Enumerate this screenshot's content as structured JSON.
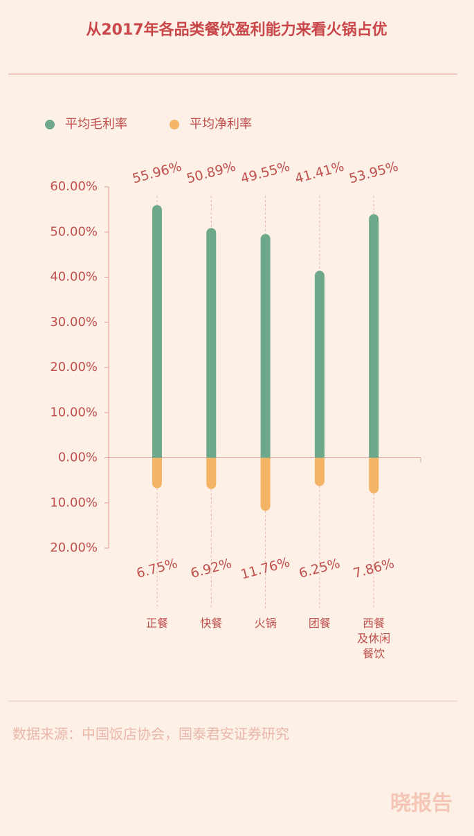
{
  "chart_data": {
    "type": "bar",
    "title": "从2017年各品类餐饮盈利能力来看火锅占优",
    "categories": [
      "正餐",
      "快餐",
      "火锅",
      "团餐",
      "西餐\n及休闲\n餐饮"
    ],
    "series": [
      {
        "name": "平均毛利率",
        "color": "#6ea88b",
        "values": [
          55.96,
          50.89,
          49.55,
          41.41,
          53.95
        ],
        "value_labels": [
          "55.96%",
          "50.89%",
          "49.55%",
          "41.41%",
          "53.95%"
        ]
      },
      {
        "name": "平均净利率",
        "color": "#f3b466",
        "values": [
          -6.75,
          -6.92,
          -11.76,
          -6.25,
          -7.86
        ],
        "value_labels": [
          "6.75%",
          "6.92%",
          "11.76%",
          "6.25%",
          "7.86%"
        ]
      }
    ],
    "ylim": [
      -20,
      60
    ],
    "yticks": [
      {
        "value": 60,
        "label": "60.00%"
      },
      {
        "value": 50,
        "label": "50.00%"
      },
      {
        "value": 40,
        "label": "40.00%"
      },
      {
        "value": 30,
        "label": "30.00%"
      },
      {
        "value": 20,
        "label": "20.00%"
      },
      {
        "value": 10,
        "label": "10.00%"
      },
      {
        "value": 0,
        "label": "0.00%"
      },
      {
        "value": -10,
        "label": "10.00%"
      },
      {
        "value": -20,
        "label": "20.00%"
      }
    ],
    "source": "数据来源：中国饭店协会，国泰君安证券研究",
    "watermark": "晓报告"
  }
}
